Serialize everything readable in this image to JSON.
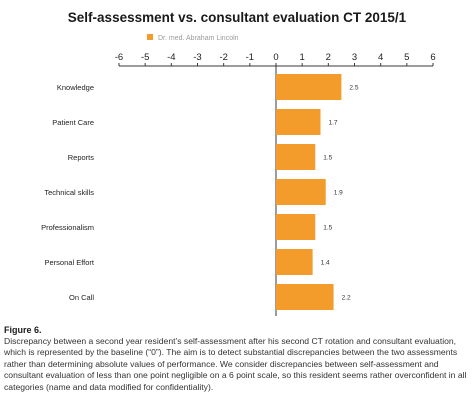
{
  "chart_data": {
    "type": "bar",
    "orientation": "horizontal",
    "title": "Self-assessment vs. consultant evaluation CT 2015/1",
    "series": [
      {
        "name": "Dr. med. Abraham Lincoln",
        "values": [
          2.5,
          1.7,
          1.5,
          1.9,
          1.5,
          1.4,
          2.2
        ]
      }
    ],
    "categories": [
      "Knowledge",
      "Patient Care",
      "Reports",
      "Technical skills",
      "Professionalism",
      "Personal Effort",
      "On Call"
    ],
    "xlim": [
      -6,
      6
    ],
    "x_ticks": [
      "-6",
      "-5",
      "-4",
      "-3",
      "-2",
      "-1",
      "0",
      "1",
      "2",
      "3",
      "4",
      "5",
      "6"
    ],
    "grid": false,
    "legend_position": "top-left",
    "bar_color": "#F39C2B"
  },
  "caption": {
    "label": "Figure 6.",
    "text": "Discrepancy between a second year resident’s self-assessment after his second CT rotation and consultant evaluation, which is represented by the baseline (“0”). The aim is to detect substantial discrepancies between the two assessments rather than determining absolute values of performance. We consider discrepancies between self-assessment and consultant evaluation of less than one point negligible on a 6 point scale, so this resident seems rather overconfident in all categories (name and data modified for confidentiality)."
  }
}
